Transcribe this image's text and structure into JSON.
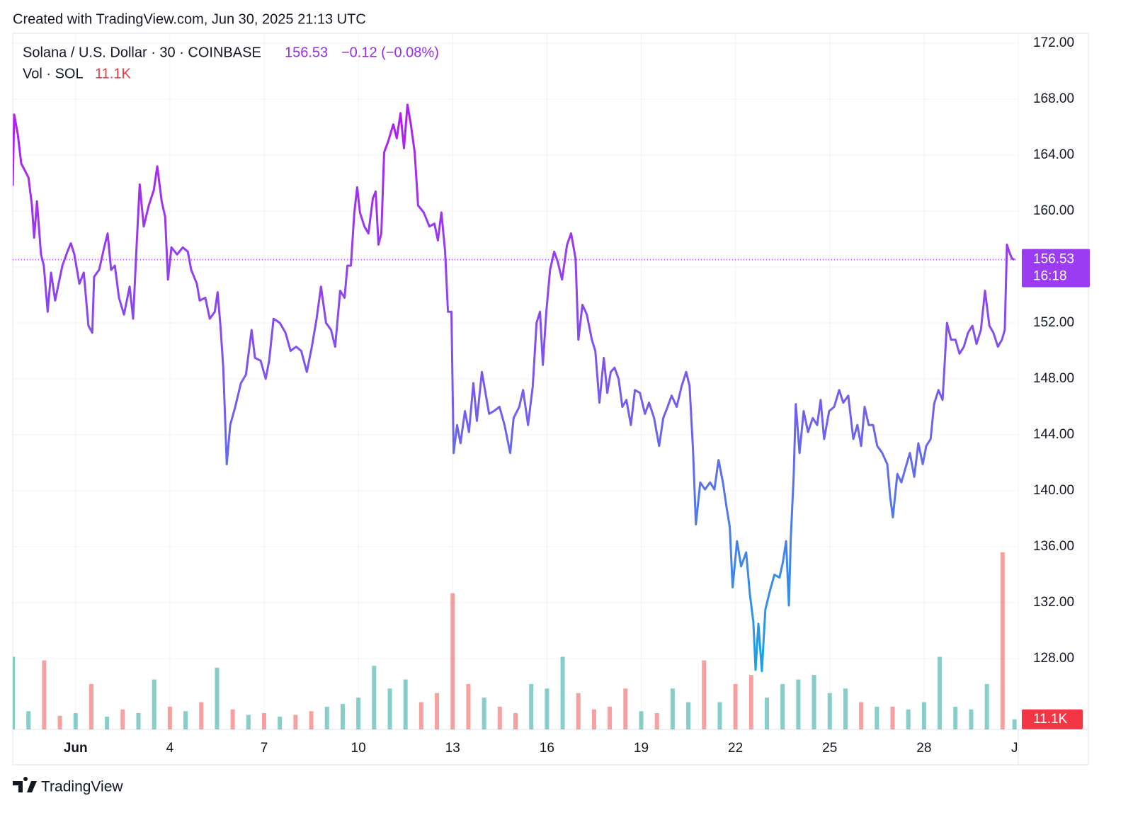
{
  "chart_data": {
    "type": "line",
    "credit": "Created with TradingView.com, Jun 30, 2025 21:13 UTC",
    "brand": "TradingView",
    "change_label": "−0.12 (−0.08%)",
    "countdown": "16:18",
    "xlim": [
      -1,
      31
    ],
    "ylim": [
      122.94,
      172.71
    ],
    "grid": true,
    "xticks": [
      {
        "value": 1,
        "label": "Jun"
      },
      4,
      7,
      10,
      13,
      16,
      19,
      22,
      25,
      28,
      {
        "value": 31,
        "label": "Ju"
      }
    ],
    "yticks": [
      {
        "value": 128,
        "label": "128.00"
      },
      {
        "value": 132,
        "label": "132.00"
      },
      {
        "value": 136,
        "label": "136.00"
      },
      {
        "value": 140,
        "label": "140.00"
      },
      {
        "value": 144,
        "label": "144.00"
      },
      {
        "value": 148,
        "label": "148.00"
      },
      {
        "value": 152,
        "label": "152.00"
      },
      {
        "value": 156,
        "label": "156.00"
      },
      {
        "value": 160,
        "label": "160.00"
      },
      {
        "value": 164,
        "label": "164.00"
      },
      {
        "value": 168,
        "label": "168.00"
      },
      {
        "value": 172,
        "label": "172.00"
      }
    ],
    "x": [
      -1.0,
      -0.955,
      -0.84,
      -0.73,
      -0.5,
      -0.39,
      -0.32,
      -0.23,
      -0.1,
      -0.01,
      0.11,
      0.22,
      0.35,
      0.44,
      0.58,
      0.74,
      0.85,
      0.96,
      1.12,
      1.26,
      1.41,
      1.53,
      1.59,
      1.75,
      1.91,
      2.02,
      2.13,
      2.25,
      2.38,
      2.54,
      2.72,
      2.83,
      2.95,
      3.04,
      3.17,
      3.33,
      3.49,
      3.6,
      3.74,
      3.85,
      3.94,
      4.05,
      4.23,
      4.41,
      4.57,
      4.68,
      4.86,
      4.95,
      5.13,
      5.27,
      5.43,
      5.52,
      5.61,
      5.7,
      5.81,
      5.92,
      6.08,
      6.26,
      6.42,
      6.6,
      6.71,
      6.89,
      7.05,
      7.16,
      7.3,
      7.5,
      7.68,
      7.84,
      8.02,
      8.18,
      8.36,
      8.52,
      8.67,
      8.81,
      8.97,
      9.13,
      9.26,
      9.42,
      9.56,
      9.65,
      9.76,
      9.87,
      9.96,
      10.05,
      10.19,
      10.32,
      10.46,
      10.55,
      10.64,
      10.73,
      10.82,
      10.95,
      11.11,
      11.22,
      11.34,
      11.45,
      11.56,
      11.67,
      11.79,
      11.9,
      12.08,
      12.26,
      12.42,
      12.53,
      12.64,
      12.76,
      12.85,
      12.96,
      13.03,
      13.14,
      13.25,
      13.39,
      13.52,
      13.66,
      13.77,
      13.93,
      14.06,
      14.16,
      14.31,
      14.49,
      14.65,
      14.74,
      14.83,
      14.94,
      15.12,
      15.24,
      15.4,
      15.55,
      15.67,
      15.78,
      15.87,
      15.98,
      16.1,
      16.23,
      16.34,
      16.48,
      16.64,
      16.77,
      16.91,
      17.0,
      17.13,
      17.27,
      17.43,
      17.54,
      17.67,
      17.81,
      17.92,
      18.03,
      18.15,
      18.28,
      18.4,
      18.53,
      18.67,
      18.8,
      18.96,
      19.12,
      19.25,
      19.41,
      19.57,
      19.7,
      19.84,
      19.97,
      20.13,
      20.29,
      20.43,
      20.54,
      20.65,
      20.74,
      20.88,
      21.03,
      21.19,
      21.33,
      21.46,
      21.6,
      21.71,
      21.82,
      21.91,
      22.05,
      22.18,
      22.34,
      22.46,
      22.57,
      22.64,
      22.73,
      22.84,
      22.95,
      23.09,
      23.24,
      23.4,
      23.51,
      23.61,
      23.7,
      23.76,
      23.85,
      23.92,
      24.04,
      24.17,
      24.31,
      24.46,
      24.6,
      24.71,
      24.82,
      24.98,
      25.14,
      25.3,
      25.43,
      25.59,
      25.75,
      25.88,
      26.0,
      26.11,
      26.24,
      26.38,
      26.51,
      26.67,
      26.83,
      26.92,
      27.01,
      27.15,
      27.28,
      27.42,
      27.55,
      27.69,
      27.82,
      27.96,
      28.07,
      28.21,
      28.32,
      28.46,
      28.59,
      28.73,
      28.86,
      29.0,
      29.13,
      29.27,
      29.4,
      29.54,
      29.67,
      29.81,
      29.94,
      30.08,
      30.21,
      30.35,
      30.48,
      30.57,
      30.64,
      30.71,
      30.8,
      30.88
    ],
    "series": [
      {
        "name": "Solana / U.S. Dollar · 30 · COINBASE",
        "colors": [
          "#b41cf0",
          "#7a58ee",
          "#1aa3e6"
        ],
        "values": [
          161.8,
          166.9,
          165.5,
          163.4,
          162.4,
          160.4,
          158.1,
          160.7,
          156.9,
          156.1,
          152.8,
          155.6,
          153.6,
          154.6,
          156.1,
          157.1,
          157.7,
          156.9,
          154.8,
          155.6,
          151.8,
          151.3,
          155.3,
          155.8,
          157.4,
          158.4,
          155.8,
          156.1,
          153.8,
          152.6,
          154.6,
          152.3,
          157.9,
          161.9,
          158.9,
          160.4,
          161.5,
          163.2,
          160.7,
          159.6,
          155.1,
          157.4,
          156.9,
          157.4,
          157.1,
          155.8,
          154.8,
          153.6,
          153.8,
          152.3,
          152.8,
          154.2,
          151.8,
          148.8,
          141.9,
          144.7,
          146.0,
          147.7,
          148.3,
          151.5,
          149.5,
          149.3,
          148.0,
          149.3,
          152.3,
          152.0,
          151.3,
          150.0,
          150.3,
          150.0,
          148.5,
          150.3,
          152.3,
          154.6,
          152.0,
          151.5,
          150.3,
          154.3,
          153.8,
          156.1,
          156.1,
          159.9,
          161.7,
          159.9,
          158.9,
          158.4,
          160.9,
          161.4,
          157.6,
          158.4,
          164.2,
          165.0,
          166.2,
          165.2,
          167.0,
          164.5,
          167.6,
          166.2,
          164.2,
          160.4,
          159.9,
          158.9,
          159.1,
          157.9,
          159.9,
          157.1,
          152.8,
          152.8,
          142.7,
          144.7,
          143.4,
          145.7,
          144.2,
          147.7,
          145.0,
          148.5,
          146.8,
          145.5,
          145.7,
          146.0,
          144.7,
          143.7,
          142.7,
          145.2,
          146.0,
          147.2,
          144.7,
          147.5,
          152.0,
          152.8,
          149.0,
          152.8,
          155.8,
          157.1,
          156.4,
          155.1,
          157.6,
          158.4,
          156.6,
          150.8,
          153.3,
          152.6,
          150.8,
          150.0,
          146.3,
          149.5,
          147.0,
          148.5,
          148.8,
          148.0,
          146.0,
          146.5,
          144.7,
          147.2,
          147.0,
          145.5,
          146.3,
          145.2,
          143.2,
          145.2,
          146.0,
          146.8,
          146.0,
          147.5,
          148.5,
          147.5,
          142.9,
          137.6,
          140.6,
          140.1,
          140.6,
          140.1,
          142.2,
          140.6,
          138.9,
          137.4,
          133.1,
          136.4,
          134.6,
          135.6,
          132.6,
          130.6,
          127.2,
          130.5,
          127.1,
          131.5,
          132.8,
          134.0,
          133.8,
          134.9,
          136.4,
          131.8,
          136.6,
          140.9,
          146.2,
          142.7,
          145.7,
          144.2,
          145.2,
          144.7,
          146.5,
          143.7,
          145.7,
          146.0,
          147.2,
          146.3,
          146.8,
          143.7,
          144.7,
          143.2,
          146.0,
          144.7,
          144.7,
          143.2,
          142.7,
          141.9,
          139.6,
          138.1,
          141.2,
          140.6,
          141.7,
          142.7,
          141.0,
          143.4,
          141.9,
          143.2,
          143.7,
          146.2,
          147.2,
          146.5,
          152.0,
          150.8,
          150.8,
          149.8,
          150.3,
          151.3,
          151.8,
          150.5,
          151.5,
          154.3,
          151.8,
          151.3,
          150.3,
          150.8,
          151.5,
          157.6,
          157.1,
          156.6,
          156.53
        ]
      }
    ],
    "volume": {
      "name": "Vol · SOL",
      "colors": [
        "#26a69a",
        "#ef5350"
      ],
      "current_label": "11.1K",
      "x": [
        -1,
        -0.5,
        0,
        0.5,
        1,
        1.5,
        2,
        2.5,
        3,
        3.5,
        4,
        4.5,
        5,
        5.5,
        6,
        6.5,
        7,
        7.5,
        8,
        8.5,
        9,
        9.5,
        10,
        10.5,
        11,
        11.5,
        12,
        12.5,
        13,
        13.5,
        14,
        14.5,
        15,
        15.5,
        16,
        16.5,
        17,
        17.5,
        18,
        18.5,
        19,
        19.5,
        20,
        20.5,
        21,
        21.5,
        22,
        22.5,
        23,
        23.5,
        24,
        24.5,
        25,
        25.5,
        26,
        26.5,
        27,
        27.5,
        28,
        28.5,
        29,
        29.5,
        30,
        30.5,
        30.88
      ],
      "values": [
        80,
        20,
        76,
        15,
        18,
        50,
        14,
        22,
        18,
        55,
        25,
        20,
        30,
        68,
        22,
        16,
        18,
        14,
        16,
        20,
        25,
        28,
        35,
        70,
        45,
        55,
        30,
        40,
        150,
        50,
        35,
        25,
        18,
        50,
        45,
        80,
        40,
        22,
        25,
        45,
        20,
        18,
        45,
        30,
        76,
        30,
        50,
        60,
        35,
        50,
        55,
        60,
        40,
        45,
        30,
        25,
        25,
        22,
        30,
        80,
        25,
        22,
        50,
        195,
        11.1
      ]
    }
  }
}
